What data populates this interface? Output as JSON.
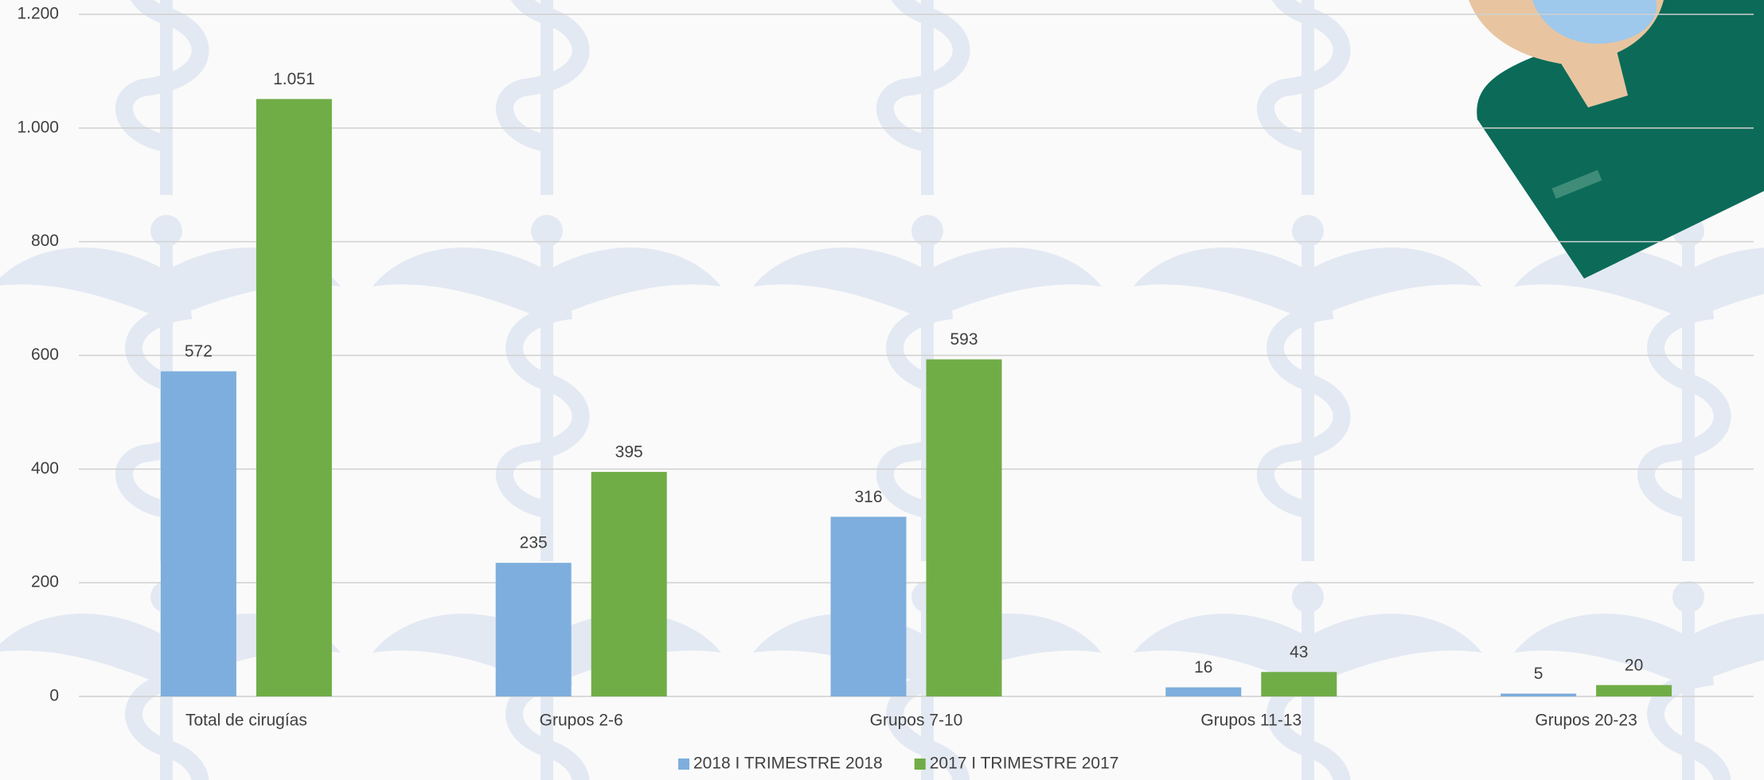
{
  "chart_data": {
    "type": "bar",
    "categories": [
      "Total de cirugías",
      "Grupos 2-6",
      "Grupos 7-10",
      "Grupos 11-13",
      "Grupos 20-23"
    ],
    "series": [
      {
        "name": "2018 I TRIMESTRE 2018",
        "color": "#7eaedd",
        "values": [
          572,
          235,
          316,
          16,
          5
        ]
      },
      {
        "name": "2017 I TRIMESTRE 2017",
        "color": "#70ad47",
        "values": [
          1051,
          395,
          593,
          43,
          20
        ],
        "value_labels": [
          "1.051",
          "395",
          "593",
          "43",
          "20"
        ]
      }
    ],
    "ylim": [
      0,
      1200
    ],
    "yticks": [
      0,
      200,
      400,
      600,
      800,
      {
        "value": 1000,
        "label": "1.000"
      },
      {
        "value": 1200,
        "label": "1.200"
      }
    ],
    "grid": true,
    "legend": "bottom"
  }
}
